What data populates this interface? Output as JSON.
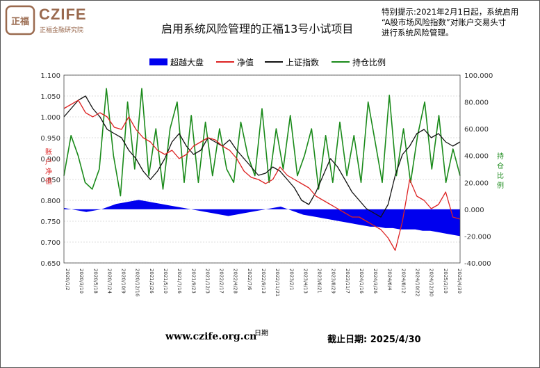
{
  "header": {
    "logo_text": "CZIFE",
    "logo_sub": "正福金融研究院",
    "logo_glyph": "正福",
    "title": "启用系统风险管理的正福13号小试项目",
    "notice_lines": [
      "特别提示:2021年2月1日起，系统启用",
      "“A股市场风险指数”对账户交易头寸",
      "进行系统风险管理。"
    ]
  },
  "footer": {
    "website": "www.czife.org.cn",
    "date_text": "截止日期: 2025/4/30"
  },
  "colors": {
    "excess": "#0000ee",
    "nav": "#dd2222",
    "index": "#111111",
    "position": "#1a8a1a",
    "logo": "#9a6a4f"
  },
  "chart_data": {
    "type": "line",
    "title": "启用系统风险管理的正福13号小试项目",
    "xlabel": "日期",
    "ylabel_left": "账户净值",
    "ylabel_right": "持仓比例",
    "left_axis": {
      "min": 0.65,
      "max": 1.1,
      "ticks": [
        "1.100",
        "1.050",
        "1.000",
        "0.950",
        "0.900",
        "0.850",
        "0.800",
        "0.750",
        "0.700",
        "0.650"
      ]
    },
    "right_axis": {
      "min": -40,
      "max": 100,
      "ticks": [
        "100.000",
        "80.000",
        "60.000",
        "40.000",
        "20.000",
        "0.000",
        "-20.000",
        "-40.000"
      ]
    },
    "x_start": "2020/1/2",
    "x_end": "2025/4/30",
    "x_tick_labels": [
      "2020/1/2",
      "2020/3/10",
      "2020/5/18",
      "2020/7/24",
      "2020/10/9",
      "2020/12/16",
      "2021/2/26",
      "2021/5/10",
      "2021/7/16",
      "2021/9/23",
      "2021/12/3",
      "2022/2/17",
      "2022/4/28",
      "2022/7/6",
      "2022/9/13",
      "2022/11/21",
      "2023/2/1",
      "2023/4/13",
      "2023/6/21",
      "2023/8/29",
      "2023/11/7",
      "2024/1/16",
      "2024/3/26",
      "2024/6/4",
      "2024/8/12",
      "2024/10/22",
      "2024/12/30",
      "2025/3/10",
      "2025/4/30"
    ],
    "legend": [
      {
        "name": "超越大盘",
        "style": "bar"
      },
      {
        "name": "净值",
        "style": "line"
      },
      {
        "name": "上证指数",
        "style": "line"
      },
      {
        "name": "持仓比例",
        "style": "line"
      }
    ],
    "legend_position": "top-center",
    "grid": true,
    "series": [
      {
        "name": "超越大盘",
        "axis": "right",
        "type": "area",
        "values": [
          1,
          0,
          -1,
          -2,
          -1,
          0,
          2,
          4,
          5,
          6,
          7,
          6,
          5,
          4,
          3,
          2,
          1,
          0,
          -1,
          -2,
          -3,
          -4,
          -5,
          -4,
          -3,
          -2,
          -1,
          0,
          1,
          2,
          0,
          -2,
          -4,
          -5,
          -6,
          -7,
          -8,
          -9,
          -10,
          -11,
          -12,
          -13,
          -13,
          -14,
          -14,
          -15,
          -15,
          -15,
          -16,
          -16,
          -17,
          -18,
          -19,
          -20
        ]
      },
      {
        "name": "净值",
        "axis": "left",
        "values": [
          1.02,
          1.03,
          1.04,
          1.01,
          1.0,
          1.01,
          1.0,
          0.975,
          0.97,
          1.0,
          0.97,
          0.95,
          0.94,
          0.92,
          0.91,
          0.92,
          0.9,
          0.91,
          0.93,
          0.94,
          0.95,
          0.945,
          0.93,
          0.92,
          0.9,
          0.87,
          0.855,
          0.85,
          0.84,
          0.85,
          0.88,
          0.86,
          0.85,
          0.84,
          0.83,
          0.81,
          0.8,
          0.79,
          0.78,
          0.77,
          0.76,
          0.76,
          0.75,
          0.74,
          0.73,
          0.71,
          0.68,
          0.75,
          0.85,
          0.81,
          0.8,
          0.78,
          0.79,
          0.82,
          0.76,
          0.755
        ]
      },
      {
        "name": "上证指数",
        "axis": "left",
        "values": [
          1.0,
          1.02,
          1.04,
          1.05,
          1.02,
          1.0,
          0.97,
          0.96,
          0.95,
          0.92,
          0.9,
          0.87,
          0.85,
          0.87,
          0.9,
          0.94,
          0.96,
          0.93,
          0.91,
          0.92,
          0.95,
          0.94,
          0.93,
          0.945,
          0.92,
          0.9,
          0.88,
          0.86,
          0.865,
          0.88,
          0.87,
          0.85,
          0.83,
          0.8,
          0.79,
          0.82,
          0.86,
          0.9,
          0.88,
          0.85,
          0.82,
          0.8,
          0.78,
          0.77,
          0.76,
          0.79,
          0.86,
          0.91,
          0.93,
          0.96,
          0.97,
          0.95,
          0.96,
          0.94,
          0.93,
          0.94
        ]
      },
      {
        "name": "持仓比例",
        "axis": "right",
        "values": [
          25,
          55,
          40,
          20,
          15,
          30,
          90,
          40,
          10,
          80,
          30,
          90,
          25,
          60,
          15,
          60,
          80,
          20,
          70,
          20,
          65,
          25,
          60,
          30,
          20,
          65,
          40,
          25,
          75,
          20,
          60,
          30,
          70,
          25,
          40,
          60,
          15,
          55,
          20,
          65,
          25,
          55,
          20,
          80,
          50,
          20,
          85,
          25,
          60,
          20,
          55,
          80,
          30,
          70,
          20,
          45,
          25
        ]
      }
    ]
  }
}
